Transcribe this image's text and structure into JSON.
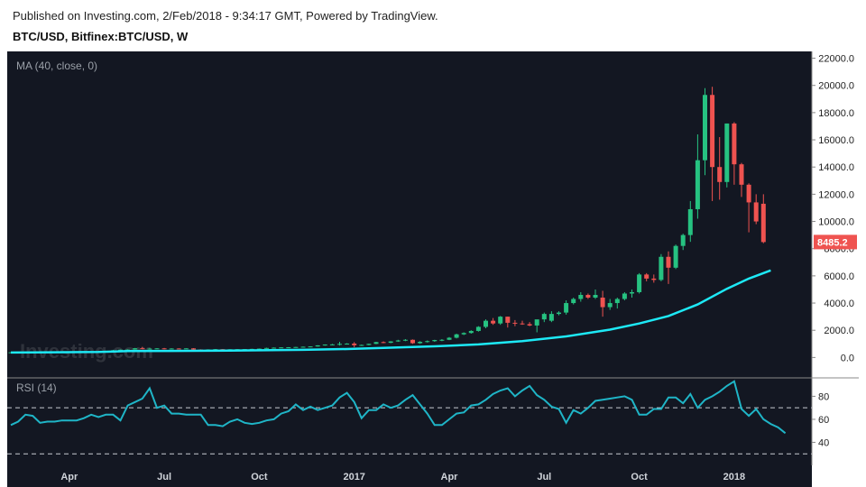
{
  "header": {
    "published": "Published on Investing.com, 2/Feb/2018 - 9:34:17 GMT, Powered by TradingView.",
    "symbol": "BTC/USD, Bitfinex:BTC/USD, W"
  },
  "chart_data": [
    {
      "type": "candlestick",
      "panel": "price",
      "indicator_label": "MA (40, close, 0)",
      "watermark": "Investing.com",
      "last_price_label": "8485.2",
      "ylim": [
        -1500,
        22500
      ],
      "y_ticks": [
        "0.0",
        "2000.0",
        "4000.0",
        "6000.0",
        "8000.0",
        "10000.0",
        "12000.0",
        "14000.0",
        "16000.0",
        "18000.0",
        "20000.0",
        "22000.0"
      ],
      "y_tick_values": [
        0,
        2000,
        4000,
        6000,
        8000,
        10000,
        12000,
        14000,
        16000,
        18000,
        20000,
        22000
      ],
      "x_labels": [
        {
          "label": "Apr",
          "week": 8
        },
        {
          "label": "Jul",
          "week": 21
        },
        {
          "label": "Oct",
          "week": 34
        },
        {
          "label": "2017",
          "week": 47
        },
        {
          "label": "Apr",
          "week": 60
        },
        {
          "label": "Jul",
          "week": 73
        },
        {
          "label": "Oct",
          "week": 86
        },
        {
          "label": "2018",
          "week": 99
        }
      ],
      "candles": [
        {
          "o": 370,
          "h": 390,
          "l": 360,
          "c": 380
        },
        {
          "o": 380,
          "h": 400,
          "l": 370,
          "c": 395
        },
        {
          "o": 395,
          "h": 410,
          "l": 385,
          "c": 400
        },
        {
          "o": 400,
          "h": 415,
          "l": 395,
          "c": 410
        },
        {
          "o": 410,
          "h": 420,
          "l": 400,
          "c": 405
        },
        {
          "o": 405,
          "h": 425,
          "l": 400,
          "c": 415
        },
        {
          "o": 415,
          "h": 425,
          "l": 405,
          "c": 420
        },
        {
          "o": 420,
          "h": 430,
          "l": 410,
          "c": 425
        },
        {
          "o": 425,
          "h": 440,
          "l": 420,
          "c": 435
        },
        {
          "o": 435,
          "h": 450,
          "l": 430,
          "c": 445
        },
        {
          "o": 445,
          "h": 455,
          "l": 430,
          "c": 440
        },
        {
          "o": 440,
          "h": 455,
          "l": 435,
          "c": 450
        },
        {
          "o": 450,
          "h": 460,
          "l": 440,
          "c": 455
        },
        {
          "o": 455,
          "h": 470,
          "l": 445,
          "c": 450
        },
        {
          "o": 450,
          "h": 560,
          "l": 445,
          "c": 530
        },
        {
          "o": 530,
          "h": 580,
          "l": 510,
          "c": 570
        },
        {
          "o": 570,
          "h": 600,
          "l": 550,
          "c": 580
        },
        {
          "o": 580,
          "h": 700,
          "l": 570,
          "c": 680
        },
        {
          "o": 680,
          "h": 780,
          "l": 600,
          "c": 620
        },
        {
          "o": 620,
          "h": 700,
          "l": 600,
          "c": 650
        },
        {
          "o": 650,
          "h": 690,
          "l": 620,
          "c": 670
        },
        {
          "o": 670,
          "h": 700,
          "l": 600,
          "c": 620
        },
        {
          "o": 620,
          "h": 680,
          "l": 610,
          "c": 660
        },
        {
          "o": 660,
          "h": 680,
          "l": 640,
          "c": 650
        },
        {
          "o": 650,
          "h": 680,
          "l": 630,
          "c": 670
        },
        {
          "o": 670,
          "h": 690,
          "l": 560,
          "c": 580
        },
        {
          "o": 580,
          "h": 600,
          "l": 560,
          "c": 570
        },
        {
          "o": 570,
          "h": 600,
          "l": 560,
          "c": 590
        },
        {
          "o": 590,
          "h": 620,
          "l": 580,
          "c": 610
        },
        {
          "o": 610,
          "h": 620,
          "l": 590,
          "c": 600
        },
        {
          "o": 600,
          "h": 615,
          "l": 595,
          "c": 605
        },
        {
          "o": 605,
          "h": 620,
          "l": 600,
          "c": 610
        },
        {
          "o": 610,
          "h": 620,
          "l": 600,
          "c": 615
        },
        {
          "o": 615,
          "h": 640,
          "l": 605,
          "c": 630
        },
        {
          "o": 630,
          "h": 660,
          "l": 620,
          "c": 650
        },
        {
          "o": 650,
          "h": 720,
          "l": 640,
          "c": 700
        },
        {
          "o": 700,
          "h": 740,
          "l": 690,
          "c": 720
        },
        {
          "o": 720,
          "h": 750,
          "l": 700,
          "c": 740
        },
        {
          "o": 740,
          "h": 760,
          "l": 720,
          "c": 750
        },
        {
          "o": 750,
          "h": 780,
          "l": 730,
          "c": 770
        },
        {
          "o": 770,
          "h": 800,
          "l": 750,
          "c": 790
        },
        {
          "o": 790,
          "h": 820,
          "l": 770,
          "c": 810
        },
        {
          "o": 810,
          "h": 900,
          "l": 800,
          "c": 890
        },
        {
          "o": 890,
          "h": 960,
          "l": 870,
          "c": 950
        },
        {
          "o": 950,
          "h": 1000,
          "l": 900,
          "c": 960
        },
        {
          "o": 960,
          "h": 1150,
          "l": 880,
          "c": 1000
        },
        {
          "o": 1000,
          "h": 1050,
          "l": 950,
          "c": 1020
        },
        {
          "o": 1020,
          "h": 1130,
          "l": 750,
          "c": 900
        },
        {
          "o": 900,
          "h": 950,
          "l": 850,
          "c": 920
        },
        {
          "o": 920,
          "h": 1010,
          "l": 900,
          "c": 1000
        },
        {
          "o": 1000,
          "h": 1150,
          "l": 980,
          "c": 1130
        },
        {
          "o": 1130,
          "h": 1180,
          "l": 1050,
          "c": 1080
        },
        {
          "o": 1080,
          "h": 1200,
          "l": 1050,
          "c": 1180
        },
        {
          "o": 1180,
          "h": 1300,
          "l": 1150,
          "c": 1250
        },
        {
          "o": 1250,
          "h": 1350,
          "l": 1200,
          "c": 1300
        },
        {
          "o": 1300,
          "h": 1330,
          "l": 1000,
          "c": 1050
        },
        {
          "o": 1050,
          "h": 1200,
          "l": 1000,
          "c": 1150
        },
        {
          "o": 1150,
          "h": 1250,
          "l": 1100,
          "c": 1200
        },
        {
          "o": 1200,
          "h": 1300,
          "l": 1150,
          "c": 1280
        },
        {
          "o": 1280,
          "h": 1350,
          "l": 1200,
          "c": 1300
        },
        {
          "o": 1300,
          "h": 1500,
          "l": 1280,
          "c": 1450
        },
        {
          "o": 1450,
          "h": 1750,
          "l": 1400,
          "c": 1700
        },
        {
          "o": 1700,
          "h": 1850,
          "l": 1650,
          "c": 1800
        },
        {
          "o": 1800,
          "h": 2000,
          "l": 1750,
          "c": 1950
        },
        {
          "o": 1950,
          "h": 2300,
          "l": 1900,
          "c": 2250
        },
        {
          "o": 2250,
          "h": 2800,
          "l": 2150,
          "c": 2700
        },
        {
          "o": 2700,
          "h": 2900,
          "l": 2400,
          "c": 2500
        },
        {
          "o": 2500,
          "h": 3050,
          "l": 2400,
          "c": 3000
        },
        {
          "o": 3000,
          "h": 3000,
          "l": 2200,
          "c": 2550
        },
        {
          "o": 2550,
          "h": 2750,
          "l": 2300,
          "c": 2500
        },
        {
          "o": 2500,
          "h": 2700,
          "l": 2400,
          "c": 2450
        },
        {
          "o": 2450,
          "h": 2600,
          "l": 2300,
          "c": 2350
        },
        {
          "o": 2350,
          "h": 2700,
          "l": 1850,
          "c": 2800
        },
        {
          "o": 2800,
          "h": 3300,
          "l": 2600,
          "c": 3200
        },
        {
          "o": 2700,
          "h": 3400,
          "l": 2600,
          "c": 3200
        },
        {
          "o": 3200,
          "h": 3400,
          "l": 3100,
          "c": 3300
        },
        {
          "o": 3300,
          "h": 4200,
          "l": 3150,
          "c": 4000
        },
        {
          "o": 4000,
          "h": 4400,
          "l": 3900,
          "c": 4300
        },
        {
          "o": 4300,
          "h": 4800,
          "l": 4100,
          "c": 4600
        },
        {
          "o": 4600,
          "h": 4700,
          "l": 4300,
          "c": 4400
        },
        {
          "o": 4400,
          "h": 5000,
          "l": 4300,
          "c": 4600
        },
        {
          "o": 4400,
          "h": 4900,
          "l": 3000,
          "c": 3700
        },
        {
          "o": 3700,
          "h": 4300,
          "l": 3500,
          "c": 4000
        },
        {
          "o": 4000,
          "h": 4400,
          "l": 3600,
          "c": 4300
        },
        {
          "o": 4300,
          "h": 4800,
          "l": 4200,
          "c": 4700
        },
        {
          "o": 4700,
          "h": 5000,
          "l": 4400,
          "c": 4800
        },
        {
          "o": 4800,
          "h": 6200,
          "l": 4700,
          "c": 6100
        },
        {
          "o": 6100,
          "h": 6200,
          "l": 5600,
          "c": 5800
        },
        {
          "o": 5800,
          "h": 6100,
          "l": 5500,
          "c": 5700
        },
        {
          "o": 5700,
          "h": 7600,
          "l": 5600,
          "c": 7400
        },
        {
          "o": 7400,
          "h": 7800,
          "l": 5400,
          "c": 6600
        },
        {
          "o": 6600,
          "h": 8300,
          "l": 6500,
          "c": 8200
        },
        {
          "o": 8200,
          "h": 9100,
          "l": 7900,
          "c": 9000
        },
        {
          "o": 9000,
          "h": 11500,
          "l": 8500,
          "c": 10900
        },
        {
          "o": 10900,
          "h": 16400,
          "l": 10200,
          "c": 14500
        },
        {
          "o": 14500,
          "h": 19800,
          "l": 13400,
          "c": 19300
        },
        {
          "o": 19300,
          "h": 19900,
          "l": 11500,
          "c": 14000
        },
        {
          "o": 14000,
          "h": 16200,
          "l": 11600,
          "c": 12900
        },
        {
          "o": 12900,
          "h": 17200,
          "l": 12500,
          "c": 17200
        },
        {
          "o": 17200,
          "h": 17300,
          "l": 12700,
          "c": 14200
        },
        {
          "o": 14200,
          "h": 14300,
          "l": 11800,
          "c": 12700
        },
        {
          "o": 12700,
          "h": 12800,
          "l": 9200,
          "c": 11400
        },
        {
          "o": 11400,
          "h": 12000,
          "l": 9800,
          "c": 10000
        },
        {
          "o": 11300,
          "h": 12000,
          "l": 8400,
          "c": 8485
        }
      ],
      "ma_40": [
        {
          "week": 0,
          "v": 360
        },
        {
          "week": 6,
          "v": 380
        },
        {
          "week": 12,
          "v": 400
        },
        {
          "week": 16,
          "v": 470
        },
        {
          "week": 22,
          "v": 480
        },
        {
          "week": 30,
          "v": 500
        },
        {
          "week": 40,
          "v": 560
        },
        {
          "week": 46,
          "v": 620
        },
        {
          "week": 52,
          "v": 720
        },
        {
          "week": 58,
          "v": 820
        },
        {
          "week": 64,
          "v": 960
        },
        {
          "week": 70,
          "v": 1200
        },
        {
          "week": 76,
          "v": 1550
        },
        {
          "week": 82,
          "v": 2050
        },
        {
          "week": 86,
          "v": 2500
        },
        {
          "week": 90,
          "v": 3050
        },
        {
          "week": 94,
          "v": 3900
        },
        {
          "week": 98,
          "v": 5050
        },
        {
          "week": 101,
          "v": 5800
        },
        {
          "week": 104,
          "v": 6400
        }
      ]
    },
    {
      "type": "line",
      "panel": "rsi",
      "indicator_label": "RSI (14)",
      "ylim": [
        20,
        96
      ],
      "y_ticks": [
        "40",
        "60",
        "80"
      ],
      "y_tick_values": [
        40,
        60,
        80
      ],
      "reference_lines": [
        30,
        70
      ],
      "values": [
        55,
        58,
        64,
        63,
        57,
        58,
        58,
        59,
        59,
        59,
        61,
        64,
        62,
        64,
        64,
        59,
        72,
        75,
        78,
        87,
        70,
        72,
        65,
        65,
        64,
        64,
        64,
        55,
        55,
        54,
        58,
        60,
        57,
        56,
        57,
        59,
        60,
        65,
        67,
        73,
        68,
        71,
        68,
        70,
        72,
        79,
        83,
        75,
        61,
        68,
        68,
        73,
        70,
        72,
        77,
        81,
        73,
        65,
        55,
        55,
        60,
        65,
        66,
        72,
        73,
        77,
        82,
        85,
        87,
        80,
        85,
        89,
        81,
        77,
        71,
        69,
        57,
        68,
        65,
        70,
        76,
        77,
        78,
        79,
        80,
        77,
        64,
        64,
        69,
        69,
        79,
        79,
        74,
        82,
        70,
        77,
        80,
        84,
        89,
        93,
        69,
        63,
        69,
        60,
        56,
        53,
        48
      ]
    }
  ]
}
